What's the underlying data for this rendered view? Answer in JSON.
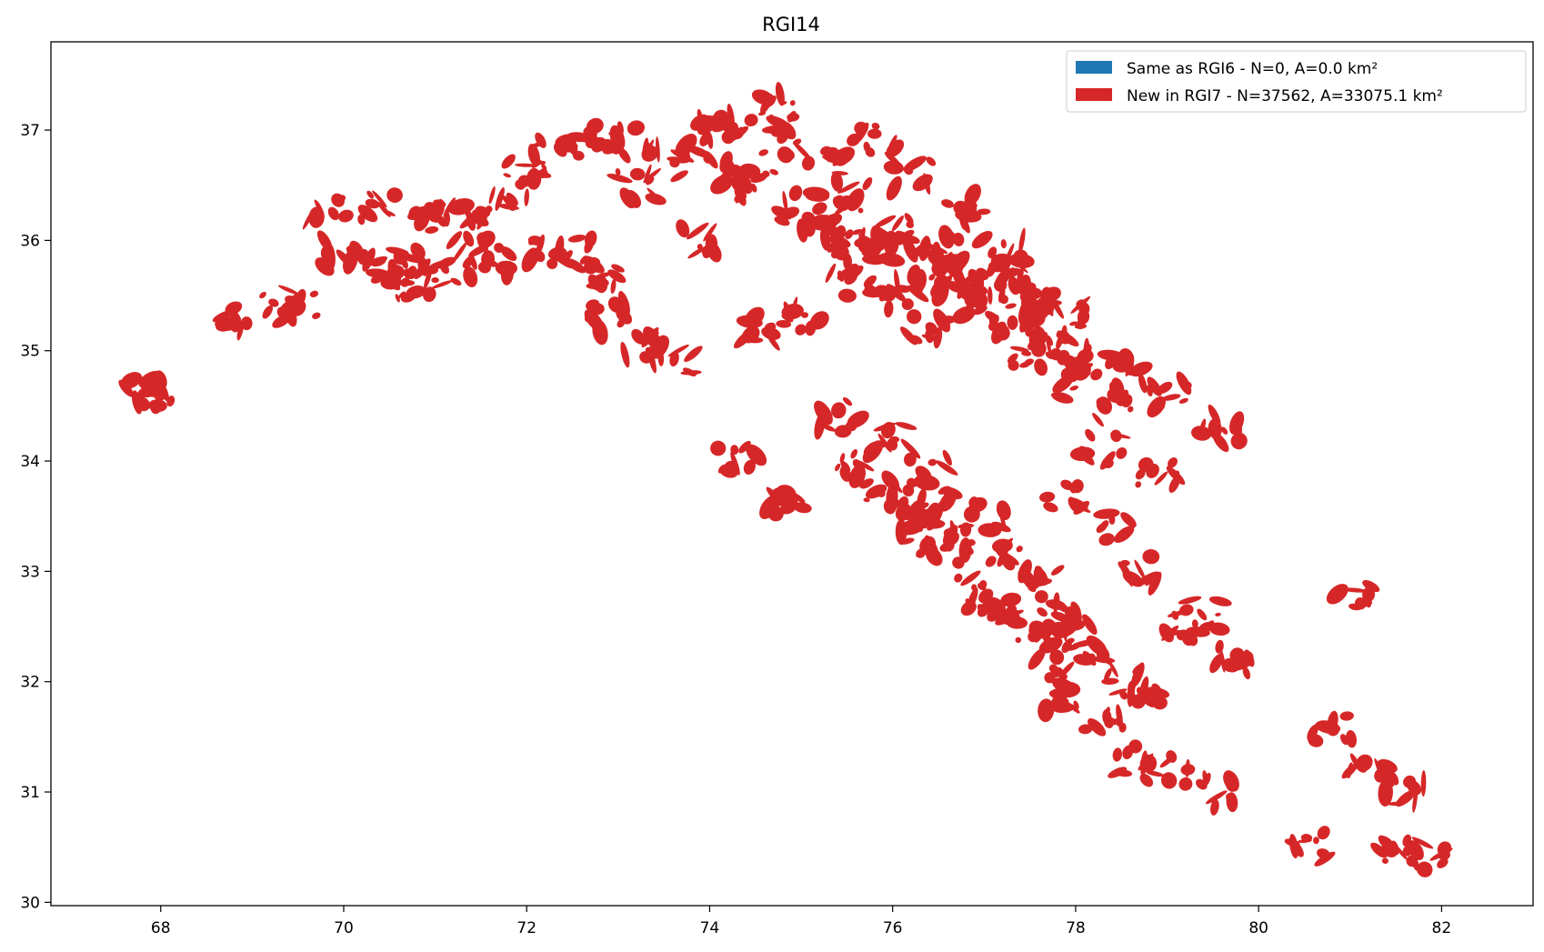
{
  "chart_data": {
    "type": "scatter",
    "title": "RGI14",
    "xlabel": "",
    "ylabel": "",
    "xlim": [
      66.8,
      83.0
    ],
    "ylim": [
      29.97,
      37.8
    ],
    "x_ticks": [
      "68",
      "70",
      "72",
      "74",
      "76",
      "78",
      "80",
      "82"
    ],
    "y_ticks": [
      "30",
      "31",
      "32",
      "33",
      "34",
      "35",
      "36",
      "37"
    ],
    "grid": false,
    "legend_position": "top-right",
    "series": [
      {
        "name": "Same as RGI6 - N=0, A=0.0 km²",
        "color": "#1f77b4",
        "points": []
      },
      {
        "name": "New in RGI7 - N=37562, A=33075.1 km²",
        "color": "#d62728",
        "points": [
          [
            67.8,
            34.65
          ],
          [
            67.95,
            34.6
          ],
          [
            68.8,
            35.3
          ],
          [
            69.3,
            35.4
          ],
          [
            69.5,
            35.45
          ],
          [
            69.8,
            36.3
          ],
          [
            70.0,
            35.9
          ],
          [
            70.3,
            35.7
          ],
          [
            70.4,
            36.3
          ],
          [
            70.6,
            35.8
          ],
          [
            70.8,
            35.6
          ],
          [
            71.0,
            36.2
          ],
          [
            71.0,
            35.7
          ],
          [
            71.3,
            36.3
          ],
          [
            71.4,
            35.9
          ],
          [
            71.6,
            35.8
          ],
          [
            71.8,
            36.4
          ],
          [
            72.0,
            36.6
          ],
          [
            72.2,
            35.9
          ],
          [
            72.3,
            36.8
          ],
          [
            72.5,
            35.9
          ],
          [
            72.7,
            36.9
          ],
          [
            72.8,
            35.7
          ],
          [
            72.9,
            35.3
          ],
          [
            73.0,
            36.9
          ],
          [
            73.2,
            36.5
          ],
          [
            73.3,
            35.0
          ],
          [
            73.5,
            36.7
          ],
          [
            73.6,
            34.9
          ],
          [
            73.8,
            36.8
          ],
          [
            73.9,
            36.0
          ],
          [
            74.0,
            37.0
          ],
          [
            74.2,
            36.6
          ],
          [
            74.4,
            37.1
          ],
          [
            74.5,
            36.5
          ],
          [
            74.6,
            35.2
          ],
          [
            74.7,
            37.2
          ],
          [
            74.8,
            36.9
          ],
          [
            75.0,
            36.3
          ],
          [
            75.0,
            35.3
          ],
          [
            75.2,
            36.1
          ],
          [
            75.3,
            36.7
          ],
          [
            75.4,
            35.8
          ],
          [
            75.5,
            36.4
          ],
          [
            75.6,
            36.0
          ],
          [
            75.7,
            35.6
          ],
          [
            75.8,
            36.9
          ],
          [
            75.9,
            35.9
          ],
          [
            76.0,
            36.1
          ],
          [
            76.1,
            35.5
          ],
          [
            76.2,
            36.6
          ],
          [
            76.3,
            35.8
          ],
          [
            76.4,
            35.2
          ],
          [
            76.5,
            35.7
          ],
          [
            76.6,
            35.9
          ],
          [
            76.7,
            35.6
          ],
          [
            76.8,
            36.3
          ],
          [
            76.9,
            35.4
          ],
          [
            77.0,
            35.7
          ],
          [
            77.1,
            35.5
          ],
          [
            77.2,
            35.9
          ],
          [
            77.3,
            35.3
          ],
          [
            77.4,
            35.6
          ],
          [
            77.5,
            35.0
          ],
          [
            77.6,
            35.4
          ],
          [
            77.7,
            35.1
          ],
          [
            77.8,
            34.9
          ],
          [
            77.9,
            35.3
          ],
          [
            78.0,
            34.7
          ],
          [
            78.2,
            34.9
          ],
          [
            78.4,
            34.5
          ],
          [
            78.6,
            34.8
          ],
          [
            79.0,
            34.6
          ],
          [
            79.6,
            34.3
          ],
          [
            74.3,
            34.0
          ],
          [
            74.8,
            33.6
          ],
          [
            75.4,
            34.4
          ],
          [
            75.6,
            34.0
          ],
          [
            75.8,
            33.7
          ],
          [
            76.0,
            34.2
          ],
          [
            76.1,
            33.6
          ],
          [
            76.3,
            33.4
          ],
          [
            76.4,
            33.9
          ],
          [
            76.5,
            33.2
          ],
          [
            76.6,
            33.6
          ],
          [
            76.8,
            33.3
          ],
          [
            76.9,
            32.8
          ],
          [
            77.0,
            33.5
          ],
          [
            77.2,
            32.7
          ],
          [
            77.3,
            33.1
          ],
          [
            77.5,
            32.5
          ],
          [
            77.6,
            32.9
          ],
          [
            77.7,
            32.1
          ],
          [
            77.8,
            32.4
          ],
          [
            77.9,
            31.8
          ],
          [
            78.0,
            32.6
          ],
          [
            78.2,
            32.3
          ],
          [
            78.3,
            31.6
          ],
          [
            78.5,
            32.0
          ],
          [
            78.6,
            31.3
          ],
          [
            78.8,
            31.9
          ],
          [
            79.0,
            31.2
          ],
          [
            79.2,
            32.5
          ],
          [
            79.4,
            32.6
          ],
          [
            79.7,
            32.2
          ],
          [
            79.5,
            31.0
          ],
          [
            80.5,
            30.5
          ],
          [
            80.8,
            31.6
          ],
          [
            81.0,
            32.8
          ],
          [
            81.2,
            31.2
          ],
          [
            81.4,
            30.5
          ],
          [
            81.6,
            31.0
          ],
          [
            81.9,
            30.4
          ],
          [
            78.5,
            33.4
          ],
          [
            78.7,
            33.0
          ],
          [
            78.9,
            33.9
          ],
          [
            77.9,
            33.7
          ],
          [
            78.3,
            34.1
          ]
        ]
      }
    ]
  }
}
